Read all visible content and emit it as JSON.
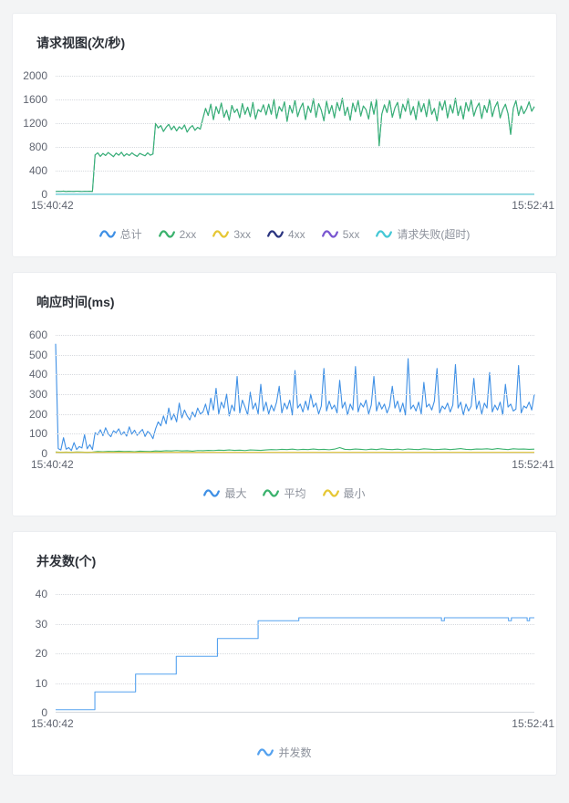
{
  "page": {
    "background": "#f3f4f5",
    "card_background": "#ffffff"
  },
  "chart_data": [
    {
      "type": "line",
      "title": "请求视图(次/秒)",
      "x_start_label": "15:40:42",
      "x_end_label": "15:52:41",
      "ylim": [
        0,
        2000
      ],
      "yticks": [
        0,
        400,
        800,
        1200,
        1600,
        2000
      ],
      "grid": "dotted-horizontal",
      "legend_position": "bottom",
      "series": [
        {
          "name": "总计",
          "color": "#3f90e5",
          "same_as": "2xx"
        },
        {
          "name": "2xx",
          "color": "#3bb26d",
          "values": [
            48,
            52,
            50,
            55,
            47,
            53,
            50,
            49,
            54,
            51,
            48,
            52,
            50,
            53,
            49,
            665,
            700,
            640,
            690,
            655,
            705,
            670,
            635,
            695,
            660,
            710,
            645,
            685,
            655,
            700,
            665,
            640,
            690,
            670,
            650,
            700,
            660,
            680,
            1195,
            1120,
            1160,
            1060,
            1130,
            1180,
            1090,
            1150,
            1070,
            1140,
            1100,
            1170,
            1050,
            1120,
            1160,
            1080,
            1130,
            1100,
            1280,
            1450,
            1330,
            1520,
            1260,
            1480,
            1360,
            1540,
            1300,
            1420,
            1250,
            1500,
            1380,
            1440,
            1290,
            1530,
            1350,
            1470,
            1310,
            1550,
            1270,
            1430,
            1390,
            1510,
            1340,
            1520,
            1350,
            1600,
            1280,
            1480,
            1400,
            1560,
            1230,
            1500,
            1370,
            1590,
            1310,
            1450,
            1540,
            1260,
            1490,
            1380,
            1610,
            1300,
            1530,
            1420,
            1240,
            1570,
            1360,
            1500,
            1290,
            1550,
            1410,
            1620,
            1330,
            1470,
            1250,
            1540,
            1390,
            1580,
            1320,
            1490,
            1430,
            1270,
            1560,
            1350,
            1600,
            820,
            1350,
            1510,
            1380,
            1590,
            1300,
            1460,
            1550,
            1280,
            1520,
            1400,
            1610,
            1340,
            1480,
            1260,
            1570,
            1390,
            1530,
            1310,
            1600,
            1350,
            1450,
            1240,
            1560,
            1420,
            1580,
            1290,
            1510,
            1370,
            1620,
            1330,
            1490,
            1270,
            1550,
            1400,
            1590,
            1320,
            1460,
            1540,
            1280,
            1500,
            1380,
            1600,
            1310,
            1470,
            1560,
            1290,
            1430,
            1520,
            1360,
            1010,
            1450,
            1580,
            1330,
            1490,
            1360,
            1440,
            1560,
            1400,
            1480
          ]
        },
        {
          "name": "3xx",
          "color": "#e6c735",
          "constant": 0
        },
        {
          "name": "4xx",
          "color": "#2b3580",
          "constant": 0
        },
        {
          "name": "5xx",
          "color": "#7a57d1",
          "constant": 0
        },
        {
          "name": "请求失败(超时)",
          "color": "#45c8d6",
          "constant": 0
        }
      ]
    },
    {
      "type": "line",
      "title": "响应时间(ms)",
      "x_start_label": "15:40:42",
      "x_end_label": "15:52:41",
      "ylim": [
        0,
        600
      ],
      "yticks": [
        0,
        100,
        200,
        300,
        400,
        500,
        600
      ],
      "grid": "dotted-horizontal",
      "legend_position": "bottom",
      "series": [
        {
          "name": "最大",
          "color": "#3f90e5",
          "values": [
            555,
            25,
            18,
            80,
            22,
            30,
            15,
            55,
            20,
            35,
            28,
            95,
            24,
            45,
            20,
            105,
            95,
            120,
            90,
            130,
            100,
            85,
            115,
            105,
            125,
            95,
            110,
            88,
            135,
            98,
            118,
            92,
            108,
            122,
            86,
            112,
            100,
            75,
            125,
            160,
            140,
            190,
            150,
            230,
            170,
            200,
            160,
            255,
            180,
            220,
            190,
            170,
            210,
            185,
            230,
            200,
            210,
            250,
            195,
            280,
            220,
            330,
            200,
            260,
            230,
            300,
            190,
            245,
            215,
            390,
            205,
            270,
            235,
            195,
            310,
            225,
            255,
            200,
            350,
            215,
            260,
            200,
            245,
            215,
            260,
            340,
            205,
            255,
            225,
            270,
            195,
            420,
            230,
            250,
            210,
            265,
            220,
            300,
            235,
            255,
            200,
            240,
            430,
            215,
            265,
            225,
            245,
            205,
            370,
            230,
            260,
            195,
            250,
            220,
            440,
            210,
            255,
            235,
            270,
            200,
            245,
            390,
            215,
            260,
            225,
            250,
            205,
            240,
            340,
            230,
            265,
            210,
            255,
            195,
            480,
            225,
            245,
            215,
            260,
            200,
            360,
            235,
            250,
            220,
            265,
            430,
            205,
            240,
            225,
            255,
            210,
            245,
            450,
            230,
            260,
            195,
            250,
            215,
            240,
            380,
            225,
            265,
            200,
            255,
            230,
            410,
            210,
            245,
            220,
            260,
            195,
            350,
            235,
            250,
            215,
            225,
            445,
            205,
            240,
            230,
            260,
            220,
            300
          ]
        },
        {
          "name": "平均",
          "color": "#3bb26d",
          "values": [
            8,
            6,
            7,
            6,
            8,
            7,
            6,
            7,
            10,
            9,
            11,
            10,
            12,
            10,
            11,
            9,
            12,
            11,
            10,
            13,
            12,
            14,
            13,
            15,
            13,
            14,
            12,
            15,
            14,
            16,
            15,
            17,
            16,
            18,
            16,
            17,
            15,
            18,
            17,
            16,
            18,
            20,
            19,
            21,
            20,
            22,
            19,
            21,
            20,
            23,
            20,
            21,
            19,
            22,
            30,
            21,
            20,
            23,
            21,
            19,
            22,
            20,
            24,
            21,
            20,
            22,
            19,
            23,
            21,
            20,
            24,
            22,
            20,
            21,
            23,
            20,
            22,
            25,
            21,
            20,
            23,
            22,
            24,
            21,
            25,
            22,
            20,
            24,
            22,
            23,
            21,
            22
          ]
        },
        {
          "name": "最小",
          "color": "#e6c735",
          "constant": 6
        }
      ]
    },
    {
      "type": "line",
      "title": "并发数(个)",
      "x_start_label": "15:40:42",
      "x_end_label": "15:52:41",
      "ylim": [
        0,
        40
      ],
      "yticks": [
        0,
        10,
        20,
        30,
        40
      ],
      "grid": "dotted-horizontal",
      "legend_position": "bottom",
      "series": [
        {
          "name": "并发数",
          "color": "#55a2ef",
          "steps": [
            [
              0,
              1
            ],
            [
              0.082,
              7
            ],
            [
              0.167,
              13
            ],
            [
              0.252,
              19
            ],
            [
              0.338,
              25
            ],
            [
              0.423,
              31
            ],
            [
              0.508,
              32
            ],
            [
              0.806,
              31
            ],
            [
              0.812,
              32
            ],
            [
              0.946,
              31
            ],
            [
              0.952,
              32
            ],
            [
              0.985,
              31
            ],
            [
              0.99,
              32
            ],
            [
              1,
              32
            ]
          ]
        }
      ]
    }
  ]
}
